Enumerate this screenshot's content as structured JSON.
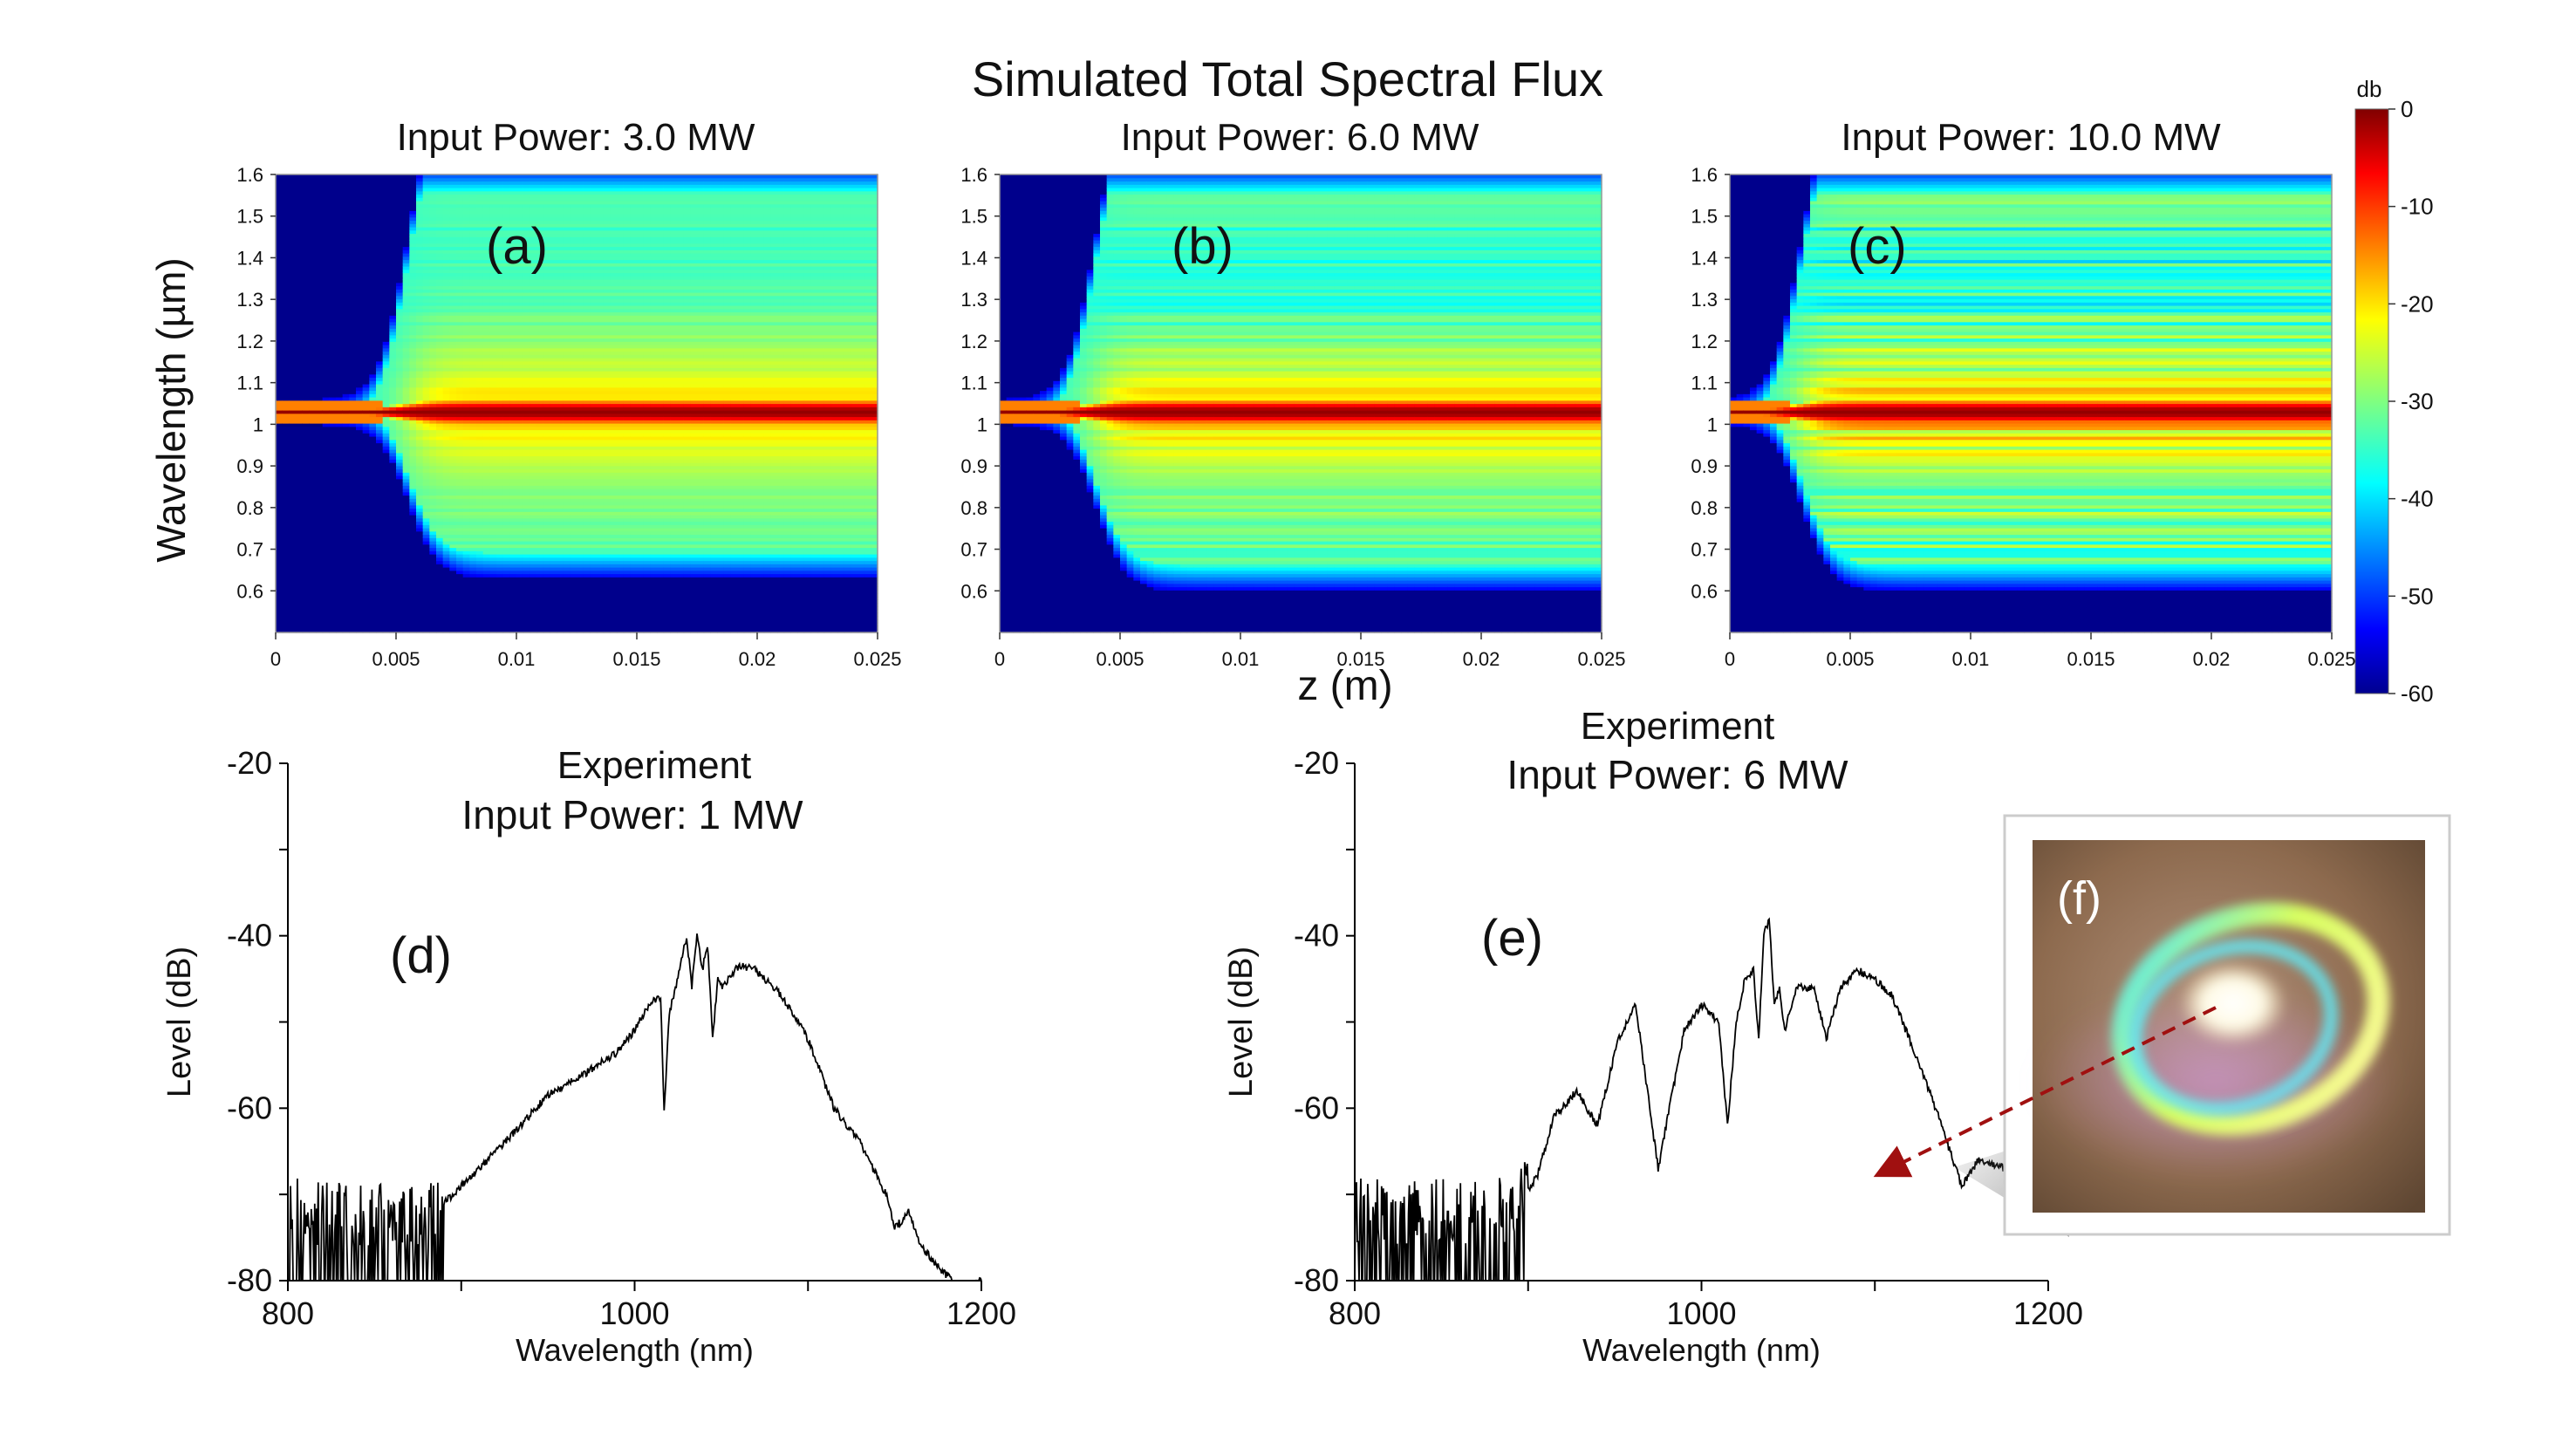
{
  "figure_title": "Simulated Total Spectral Flux",
  "chart_data": [
    {
      "id": "a",
      "type": "heatmap",
      "panel_label": "(a)",
      "title": "Input Power: 3.0 MW",
      "xlabel": "z (m)",
      "ylabel": "Wavelength (µm)",
      "xlim": [
        0,
        0.025
      ],
      "ylim": [
        0.5,
        1.6
      ],
      "xticks": [
        "0",
        "0.005",
        "0.01",
        "0.015",
        "0.02",
        "0.025"
      ],
      "yticks": [
        "0.6",
        "0.7",
        "0.8",
        "0.9",
        "1",
        "1.1",
        "1.2",
        "1.3",
        "1.4",
        "1.5",
        "1.6"
      ],
      "z_onset": 0.0055,
      "broadened_range_um": [
        0.65,
        1.6
      ],
      "pump_um": 1.03
    },
    {
      "id": "b",
      "type": "heatmap",
      "panel_label": "(b)",
      "title": "Input Power: 6.0 MW",
      "xlabel": "z (m)",
      "ylabel": "Wavelength (µm)",
      "xlim": [
        0,
        0.025
      ],
      "ylim": [
        0.5,
        1.6
      ],
      "xticks": [
        "0",
        "0.005",
        "0.01",
        "0.015",
        "0.02",
        "0.025"
      ],
      "yticks": [
        "0.6",
        "0.7",
        "0.8",
        "0.9",
        "1",
        "1.1",
        "1.2",
        "1.3",
        "1.4",
        "1.5",
        "1.6"
      ],
      "z_onset": 0.004,
      "broadened_range_um": [
        0.62,
        1.6
      ],
      "pump_um": 1.03
    },
    {
      "id": "c",
      "type": "heatmap",
      "panel_label": "(c)",
      "title": "Input Power: 10.0 MW",
      "xlabel": "z (m)",
      "ylabel": "Wavelength (µm)",
      "xlim": [
        0,
        0.025
      ],
      "ylim": [
        0.5,
        1.6
      ],
      "xticks": [
        "0",
        "0.005",
        "0.01",
        "0.015",
        "0.02",
        "0.025"
      ],
      "yticks": [
        "0.6",
        "0.7",
        "0.8",
        "0.9",
        "1",
        "1.1",
        "1.2",
        "1.3",
        "1.4",
        "1.5",
        "1.6"
      ],
      "z_onset": 0.003,
      "broadened_range_um": [
        0.62,
        1.6
      ],
      "pump_um": 1.03
    },
    {
      "id": "colorbar",
      "type": "colorbar",
      "label": "db",
      "range": [
        -60,
        0
      ],
      "ticks": [
        "0",
        "-10",
        "-20",
        "-30",
        "-40",
        "-50",
        "-60"
      ]
    },
    {
      "id": "d",
      "type": "line",
      "panel_label": "(d)",
      "title_line1": "Experiment",
      "title_line2": "Input Power: 1 MW",
      "xlabel": "Wavelength (nm)",
      "ylabel": "Level (dB)",
      "xlim": [
        800,
        1200
      ],
      "ylim": [
        -80,
        -20
      ],
      "xticks": [
        "800",
        "1000",
        "1200"
      ],
      "yticks": [
        "-20",
        "-40",
        "-60",
        "-80"
      ],
      "x": [
        800,
        880,
        895,
        925,
        950,
        975,
        990,
        1000,
        1008,
        1015,
        1017,
        1020,
        1026,
        1030,
        1033,
        1036,
        1039,
        1042,
        1045,
        1048,
        1051,
        1060,
        1070,
        1085,
        1100,
        1115,
        1130,
        1145,
        1150,
        1158,
        1165,
        1178,
        1190,
        1200
      ],
      "y": [
        -72,
        -73,
        -70,
        -64,
        -58.5,
        -55.5,
        -53.5,
        -51,
        -48,
        -47,
        -60.5,
        -49,
        -44,
        -40,
        -46,
        -39.5,
        -44,
        -41,
        -52,
        -45,
        -46,
        -43.5,
        -44,
        -47,
        -52,
        -60,
        -64,
        -70,
        -74,
        -72,
        -76,
        -79,
        -81,
        -80
      ]
    },
    {
      "id": "e",
      "type": "line",
      "panel_label": "(e)",
      "title_line1": "Experiment",
      "title_line2": "Input Power: 6 MW",
      "xlabel": "Wavelength (nm)",
      "ylabel": "Level (dB)",
      "xlim": [
        800,
        1200
      ],
      "ylim": [
        -80,
        -20
      ],
      "xticks": [
        "800",
        "1000",
        "1200"
      ],
      "yticks": [
        "-20",
        "-40",
        "-60",
        "-80"
      ],
      "x": [
        800,
        890,
        905,
        915,
        928,
        940,
        952,
        962,
        975,
        990,
        1000,
        1010,
        1015,
        1020,
        1025,
        1030,
        1033,
        1036,
        1039,
        1042,
        1045,
        1048,
        1055,
        1065,
        1072,
        1080,
        1090,
        1100,
        1110,
        1120,
        1135,
        1150,
        1160,
        1175,
        1190,
        1200
      ],
      "y": [
        -72,
        -72,
        -68,
        -61,
        -58,
        -62,
        -52,
        -48,
        -67,
        -51,
        -48,
        -50,
        -62,
        -50,
        -45,
        -44,
        -52,
        -40,
        -38,
        -48,
        -46,
        -51,
        -46,
        -46,
        -52,
        -46,
        -44,
        -45,
        -47,
        -52,
        -60,
        -69,
        -66,
        -67,
        -66,
        -66
      ]
    }
  ],
  "photo": {
    "panel_label": "(f)"
  }
}
